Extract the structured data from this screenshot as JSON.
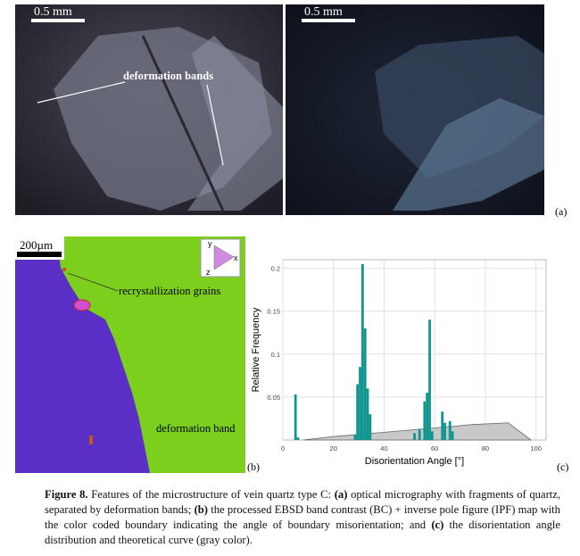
{
  "panels": {
    "a": {
      "label": "(a)",
      "left_scale": "0.5 mm",
      "right_scale": "0.5 mm",
      "annotation": "deformation bands"
    },
    "b": {
      "label": "(b)",
      "scale": "200µm",
      "ipf_axes": [
        "y",
        "x",
        "z"
      ],
      "annotations": [
        "recrystallization grains",
        "deformation band"
      ]
    },
    "c": {
      "label": "(c)"
    }
  },
  "chart_data": {
    "type": "bar",
    "xlabel": "Disorientation Angle [°]",
    "ylabel": "Relative Frequency",
    "xlim": [
      0,
      104
    ],
    "ylim": [
      0,
      0.21
    ],
    "xticks": [
      0,
      20,
      40,
      60,
      80,
      100
    ],
    "yticks": [
      0.05,
      0.1,
      0.15,
      0.2
    ],
    "grid": true,
    "histogram": {
      "color": "#0f9590",
      "x": [
        5,
        6,
        28.5,
        29.5,
        30.5,
        31.5,
        32.5,
        33.5,
        34.5,
        52,
        54,
        56,
        57,
        58,
        59,
        63,
        64,
        66,
        67
      ],
      "values": [
        0.053,
        0.003,
        0.006,
        0.065,
        0.085,
        0.205,
        0.13,
        0.06,
        0.03,
        0.008,
        0.013,
        0.045,
        0.055,
        0.14,
        0.01,
        0.033,
        0.02,
        0.022,
        0.01
      ]
    },
    "theoretical_curve": {
      "color": "#c8c8c8",
      "x": [
        8,
        20,
        40,
        60,
        75,
        89,
        98
      ],
      "values": [
        0,
        0.004,
        0.009,
        0.014,
        0.018,
        0.02,
        0
      ]
    }
  },
  "caption": {
    "label": "Figure 8.",
    "parts": [
      " Features of the microstructure of vein quartz type C: ",
      "(a)",
      " optical micrography with fragments of quartz, separated by deformation bands; ",
      "(b)",
      " the processed EBSD band contrast (BC) + inverse pole figure (IPF) map with the color coded boundary indicating the angle of boundary misorientation; and ",
      "(c)",
      " the disorientation angle distribution and theoretical curve (gray color)."
    ]
  }
}
